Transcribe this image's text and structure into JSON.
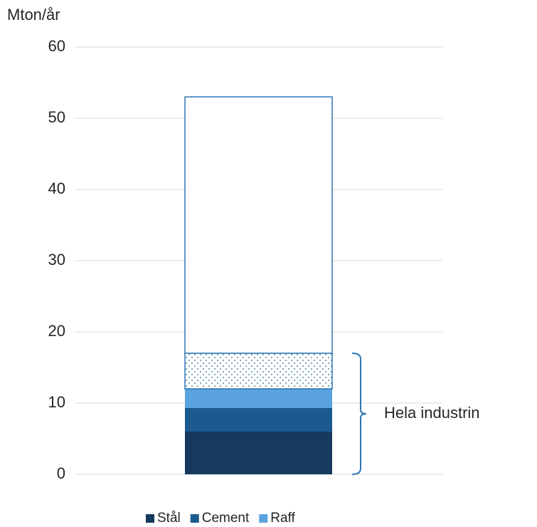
{
  "chart_data": {
    "type": "bar",
    "stacked": true,
    "ylabel": "Mton/år",
    "categories": [
      null
    ],
    "series": [
      {
        "name": "Stål",
        "color": "#153a5e",
        "values": [
          6.0
        ]
      },
      {
        "name": "Cement",
        "color": "#1b5a8e",
        "values": [
          3.3
        ]
      },
      {
        "name": "Raff",
        "color": "#5ba3e0",
        "values": [
          2.7
        ]
      },
      {
        "color": "#1e6a80",
        "pattern": "dots",
        "values": [
          5.0
        ]
      },
      {
        "color": "#ffffff",
        "values": [
          36.0
        ]
      }
    ],
    "ylim": [
      0,
      60
    ],
    "yticks": [
      0,
      10,
      20,
      30,
      40,
      50,
      60
    ],
    "grid": true,
    "annotation": {
      "text": "Hela industrin",
      "from": 0,
      "to": 17
    },
    "legend": "bottom"
  }
}
